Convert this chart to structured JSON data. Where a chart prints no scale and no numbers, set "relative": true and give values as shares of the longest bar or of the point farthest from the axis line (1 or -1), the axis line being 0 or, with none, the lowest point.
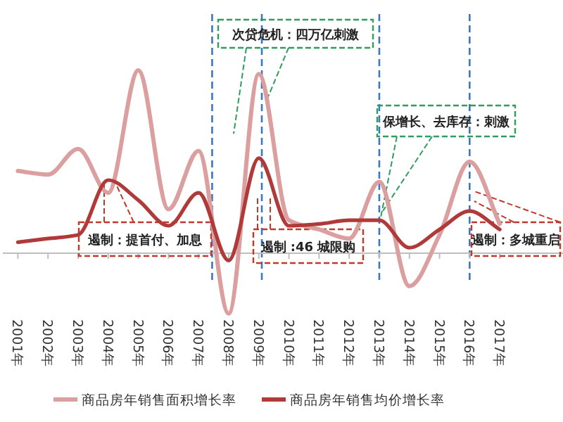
{
  "chart_data": {
    "type": "line",
    "relative": true,
    "x": [
      2001,
      2002,
      2003,
      2004,
      2005,
      2006,
      2007,
      2008,
      2009,
      2010,
      2011,
      2012,
      2013,
      2014,
      2015,
      2016,
      2017
    ],
    "xlim": [
      2000.5,
      2019.1
    ],
    "xticks": [
      {
        "value": 2001,
        "label": "2001年"
      },
      {
        "value": 2002,
        "label": "2002年"
      },
      {
        "value": 2003,
        "label": "2003年"
      },
      {
        "value": 2004,
        "label": "2004年"
      },
      {
        "value": 2005,
        "label": "2005年"
      },
      {
        "value": 2006,
        "label": "2006年"
      },
      {
        "value": 2007,
        "label": "2007年"
      },
      {
        "value": 2008,
        "label": "2008年"
      },
      {
        "value": 2009,
        "label": "2009年"
      },
      {
        "value": 2010,
        "label": "2010年"
      },
      {
        "value": 2011,
        "label": "2011年"
      },
      {
        "value": 2012,
        "label": "2012年"
      },
      {
        "value": 2013,
        "label": "2013年"
      },
      {
        "value": 2014,
        "label": "2014年"
      },
      {
        "value": 2015,
        "label": "2015年"
      },
      {
        "value": 2016,
        "label": "2016年"
      },
      {
        "value": 2017,
        "label": "2017年"
      }
    ],
    "series": [
      {
        "name": "商品房年销售面积增长率",
        "color": "#dc9f9f",
        "values": [
          0.45,
          0.43,
          0.57,
          0.33,
          1.0,
          0.24,
          0.56,
          -0.33,
          0.98,
          0.18,
          0.13,
          0.08,
          0.39,
          -0.18,
          0.1,
          0.5,
          0.16
        ]
      },
      {
        "name": "商品房年销售均价增长率",
        "color": "#b03a3a",
        "values": [
          0.06,
          0.08,
          0.1,
          0.4,
          0.29,
          0.15,
          0.33,
          -0.04,
          0.52,
          0.15,
          0.16,
          0.18,
          0.18,
          0.03,
          0.13,
          0.23,
          0.13
        ]
      }
    ],
    "ref_lines": [
      {
        "axis": "x",
        "value": 2007.45,
        "color": "#3a78c3",
        "line_style": "dashed"
      },
      {
        "axis": "x",
        "value": 2009.1,
        "color": "#3a78c3",
        "line_style": "dashed"
      },
      {
        "axis": "x",
        "value": 2013,
        "color": "#3a78c3",
        "line_style": "dashed"
      },
      {
        "axis": "x",
        "value": 2016,
        "color": "#3a78c3",
        "line_style": "dashed"
      }
    ],
    "annotations": [
      "次贷危机：四万亿刺激",
      "保增长、去库存：刺激",
      "遏制：提首付、加息",
      "遏制 :46 城限购",
      "遏制：多城重启"
    ],
    "legend": "bottom",
    "grid": false
  }
}
